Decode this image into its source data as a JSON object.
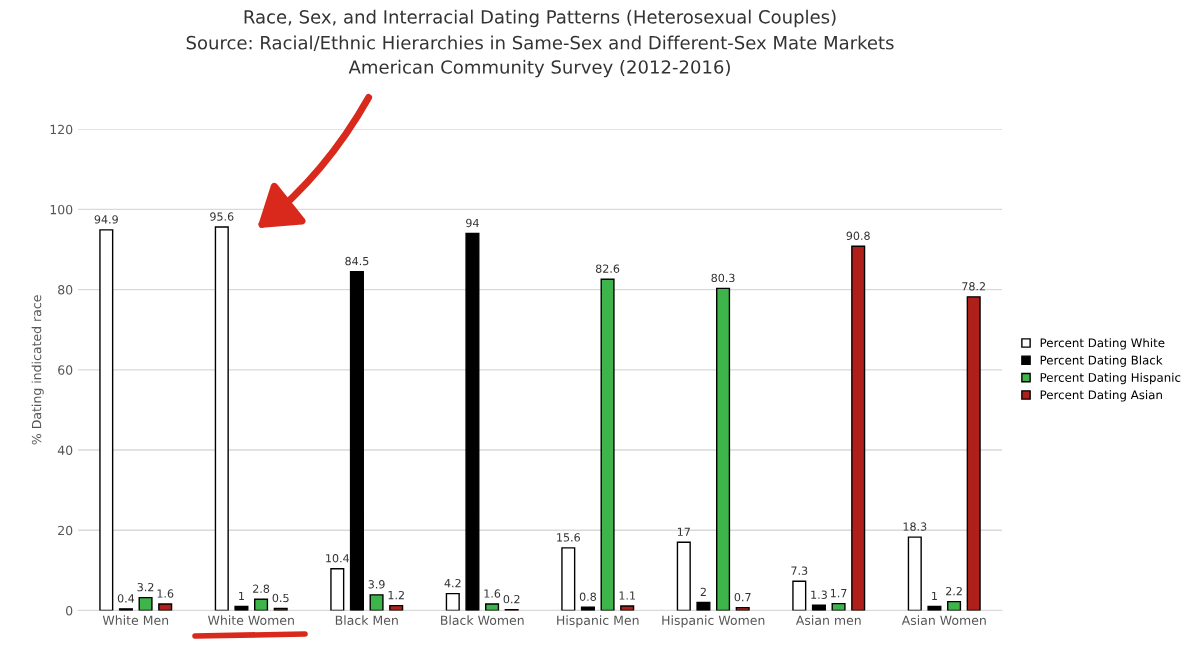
{
  "chart_data": {
    "type": "bar",
    "title": "Race, Sex, and Interracial Dating Patterns (Heterosexual Couples)",
    "subtitle": "Source: Racial/Ethnic Hierarchies in Same-Sex and Different-Sex Mate Markets\nAmerican Community Survey (2012-2016)",
    "ylabel": "% Dating indicated race",
    "categories": [
      "White Men",
      "White Women",
      "Black Men",
      "Black Women",
      "Hispanic Men",
      "Hispanic Women",
      "Asian men",
      "Asian Women"
    ],
    "series": [
      {
        "name": "Percent Dating White",
        "color": "#ffffff",
        "values": [
          94.9,
          95.6,
          10.4,
          4.2,
          15.6,
          17,
          7.3,
          18.3
        ]
      },
      {
        "name": "Percent Dating Black",
        "color": "#000000",
        "values": [
          0.4,
          1,
          84.5,
          94,
          0.8,
          2,
          1.3,
          1
        ]
      },
      {
        "name": "Percent Dating Hispanic",
        "color": "#3db54a",
        "values": [
          3.2,
          2.8,
          3.9,
          1.6,
          82.6,
          80.3,
          1.7,
          2.2
        ]
      },
      {
        "name": "Percent Dating Asian",
        "color": "#b0201a",
        "values": [
          1.6,
          0.5,
          1.2,
          0.2,
          1.1,
          0.7,
          90.8,
          78.2
        ]
      }
    ],
    "ylim": [
      0,
      120
    ],
    "yticks": [
      0,
      20,
      40,
      60,
      80,
      100,
      120
    ],
    "grid": "y",
    "legend": "right",
    "data_labels": true
  }
}
